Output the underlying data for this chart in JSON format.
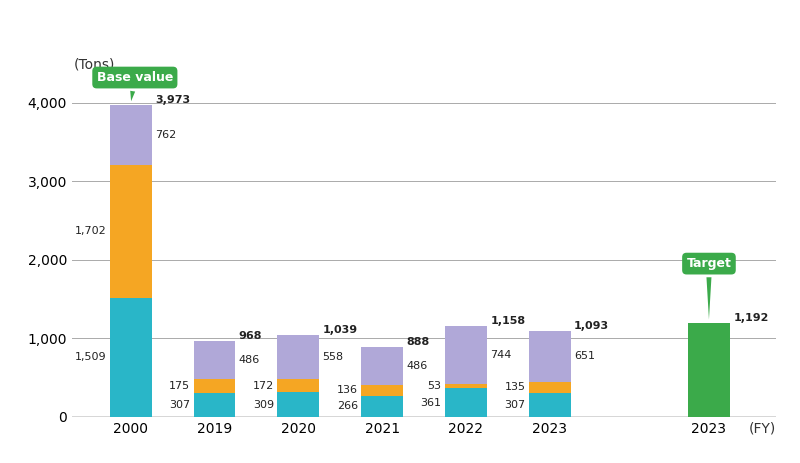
{
  "years": [
    "2000",
    "2019",
    "2020",
    "2021",
    "2022",
    "2023"
  ],
  "toray": [
    1509,
    307,
    309,
    266,
    361,
    307
  ],
  "group_japan": [
    1702,
    175,
    172,
    136,
    53,
    135
  ],
  "group_outside": [
    762,
    486,
    558,
    486,
    744,
    651
  ],
  "target_value": 1192,
  "target_year": "2023",
  "toray_color": "#29B6C8",
  "group_japan_color": "#F5A623",
  "group_outside_color": "#B0A8D8",
  "target_color": "#3BAA4A",
  "base_value_color": "#3BAA4A",
  "ylabel": "(Tons)",
  "xlabel": "(FY)",
  "yticks": [
    0,
    1000,
    2000,
    3000,
    4000
  ],
  "ylim": [
    0,
    4600
  ],
  "background_color": "#FFFFFF",
  "base_label": "Base value",
  "target_label": "Target"
}
